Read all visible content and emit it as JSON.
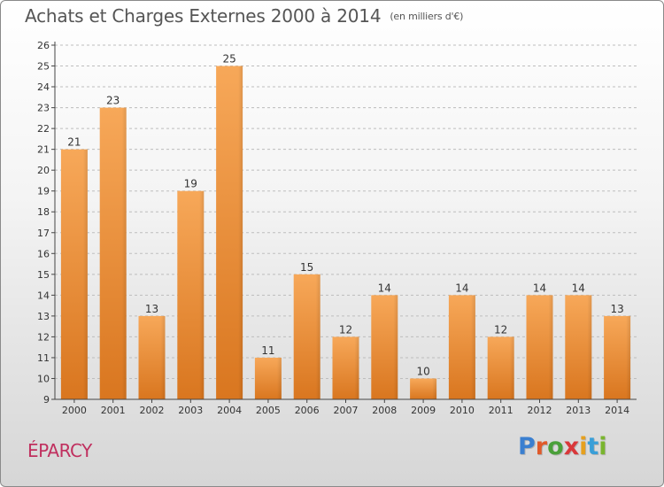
{
  "header": {
    "title": "Achats et Charges Externes 2000 à 2014",
    "subtitle": "(en milliers d'€)"
  },
  "footer": {
    "commune": "ÉPARCY",
    "logo_letters": [
      {
        "ch": "P",
        "color": "#3a7fd0"
      },
      {
        "ch": "r",
        "color": "#e05a2a"
      },
      {
        "ch": "o",
        "color": "#4aa03a"
      },
      {
        "ch": "x",
        "color": "#d9383a"
      },
      {
        "ch": "i",
        "color": "#e6a01e"
      },
      {
        "ch": "t",
        "color": "#3a9fd8"
      },
      {
        "ch": "i",
        "color": "#7ab52e"
      }
    ]
  },
  "colors": {
    "bar_light": "#f7a859",
    "bar_dark": "#d9761f",
    "axis": "#444444",
    "grid": "#bdbdbd",
    "title": "#555555",
    "commune": "#c0305f"
  },
  "chart_data": {
    "type": "bar",
    "title": "Achats et Charges Externes 2000 à 2014",
    "subtitle": "(en milliers d'€)",
    "xlabel": "",
    "ylabel": "",
    "ylim": [
      9,
      26
    ],
    "yticks": [
      9,
      10,
      11,
      12,
      13,
      14,
      15,
      16,
      17,
      18,
      19,
      20,
      21,
      22,
      23,
      24,
      25,
      26
    ],
    "grid": true,
    "categories": [
      "2000",
      "2001",
      "2002",
      "2003",
      "2004",
      "2005",
      "2006",
      "2007",
      "2008",
      "2009",
      "2010",
      "2011",
      "2012",
      "2013",
      "2014"
    ],
    "values": [
      21,
      23,
      13,
      19,
      25,
      11,
      15,
      12,
      14,
      10,
      14,
      12,
      14,
      14,
      13
    ]
  }
}
